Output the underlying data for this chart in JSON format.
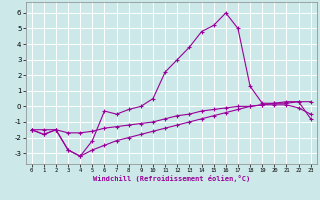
{
  "xlabel": "Windchill (Refroidissement éolien,°C)",
  "bg_color": "#cce8e8",
  "grid_color": "#ffffff",
  "line_color": "#990099",
  "x_ticks": [
    0,
    1,
    2,
    3,
    4,
    5,
    6,
    7,
    8,
    9,
    10,
    11,
    12,
    13,
    14,
    15,
    16,
    17,
    18,
    19,
    20,
    21,
    22,
    23
  ],
  "y_ticks": [
    -3,
    -2,
    -1,
    0,
    1,
    2,
    3,
    4,
    5,
    6
  ],
  "xlim": [
    -0.5,
    23.5
  ],
  "ylim": [
    -3.7,
    6.7
  ],
  "line1_x": [
    0,
    1,
    2,
    3,
    4,
    5,
    6,
    7,
    8,
    9,
    10,
    11,
    12,
    13,
    14,
    15,
    16,
    17,
    18,
    19,
    20,
    21,
    22,
    23
  ],
  "line1_y": [
    -1.5,
    -1.8,
    -1.5,
    -2.8,
    -3.2,
    -2.2,
    -0.3,
    -0.5,
    -0.2,
    0.0,
    0.5,
    2.2,
    3.0,
    3.8,
    4.8,
    5.2,
    6.0,
    5.0,
    1.3,
    0.2,
    0.2,
    0.3,
    0.3,
    0.3
  ],
  "line2_x": [
    0,
    1,
    2,
    3,
    4,
    5,
    6,
    7,
    8,
    9,
    10,
    11,
    12,
    13,
    14,
    15,
    16,
    17,
    18,
    19,
    20,
    21,
    22,
    23
  ],
  "line2_y": [
    -1.5,
    -1.5,
    -1.5,
    -1.7,
    -1.7,
    -1.6,
    -1.4,
    -1.3,
    -1.2,
    -1.1,
    -1.0,
    -0.8,
    -0.6,
    -0.5,
    -0.3,
    -0.2,
    -0.1,
    0.0,
    0.0,
    0.1,
    0.1,
    0.1,
    -0.1,
    -0.5
  ],
  "line3_x": [
    0,
    1,
    2,
    3,
    4,
    5,
    6,
    7,
    8,
    9,
    10,
    11,
    12,
    13,
    14,
    15,
    16,
    17,
    18,
    19,
    20,
    21,
    22,
    23
  ],
  "line3_y": [
    -1.5,
    -1.8,
    -1.5,
    -2.8,
    -3.2,
    -2.8,
    -2.5,
    -2.2,
    -2.0,
    -1.8,
    -1.6,
    -1.4,
    -1.2,
    -1.0,
    -0.8,
    -0.6,
    -0.4,
    -0.2,
    0.0,
    0.1,
    0.2,
    0.2,
    0.3,
    -0.8
  ]
}
